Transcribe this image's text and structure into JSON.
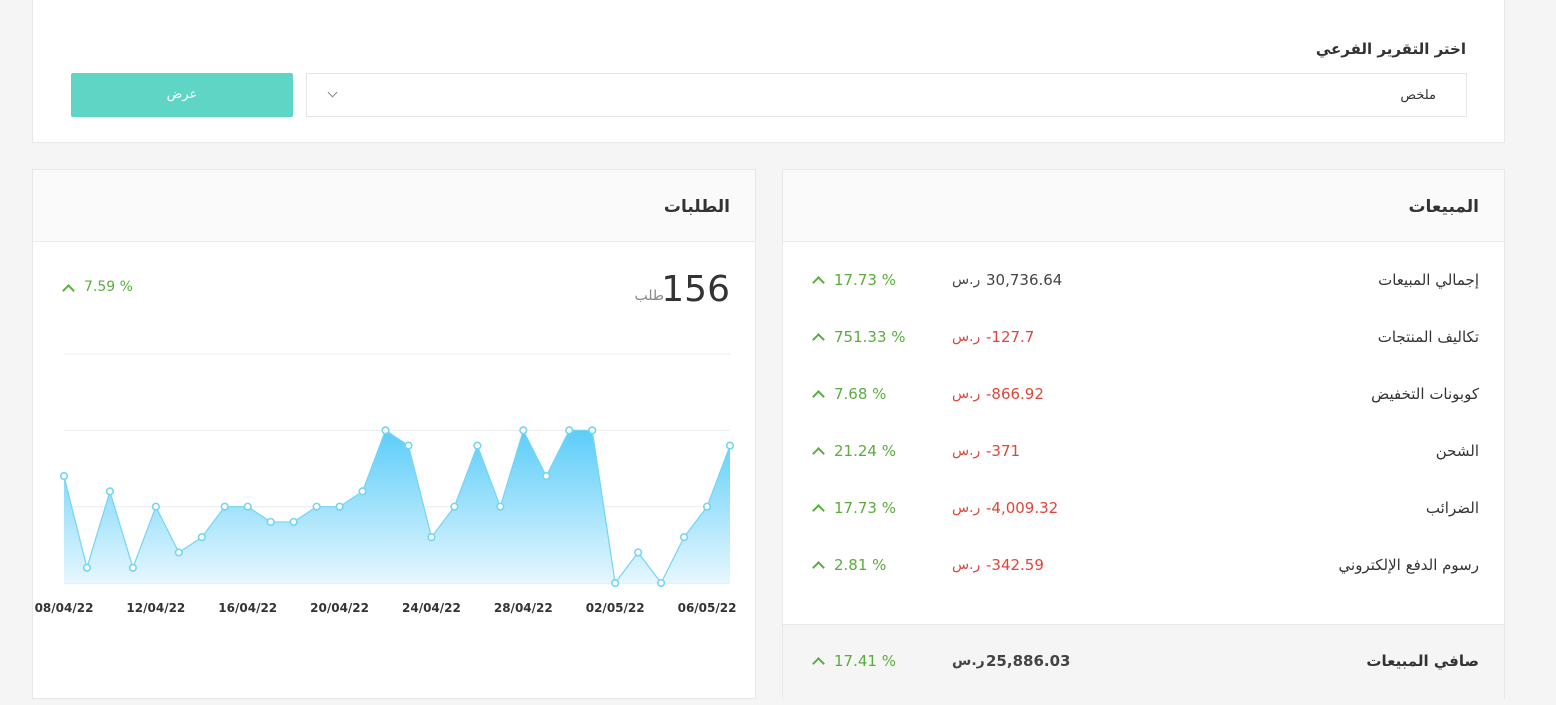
{
  "filter": {
    "label": "اختر التقرير الفرعي",
    "selected": "ملخص",
    "button": "عرض"
  },
  "sales": {
    "title": "المبيعات",
    "currency": "ر.س",
    "rows": [
      {
        "label": "إجمالي المبيعات",
        "value": "30,736.64",
        "change": "17.73 %"
      },
      {
        "label": "تكاليف المنتجات",
        "value": "-127.7",
        "change": "751.33 %"
      },
      {
        "label": "كوبونات التخفيض",
        "value": "-866.92",
        "change": "7.68 %"
      },
      {
        "label": "الشحن",
        "value": "-371",
        "change": "21.24 %"
      },
      {
        "label": "الضرائب",
        "value": "-4,009.32",
        "change": "17.73 %"
      },
      {
        "label": "رسوم الدفع الإلكتروني",
        "value": "-342.59",
        "change": "2.81 %"
      }
    ],
    "total": {
      "label": "صافي المبيعات",
      "value": "25,886.03",
      "change": "17.41 %"
    }
  },
  "orders": {
    "title": "الطلبات",
    "count": "156",
    "unit": "طلب",
    "change": "7.59 %"
  },
  "chart_data": {
    "type": "area",
    "color": "#74d4f7",
    "categories": [
      "08/04/22",
      null,
      null,
      null,
      "12/04/22",
      null,
      null,
      null,
      "16/04/22",
      null,
      null,
      null,
      "20/04/22",
      null,
      null,
      null,
      "24/04/22",
      null,
      null,
      null,
      "28/04/22",
      null,
      null,
      null,
      "02/05/22",
      null,
      null,
      null,
      "06/05/22",
      null
    ],
    "values": [
      7,
      1,
      6,
      1,
      5,
      2,
      3,
      5,
      5,
      4,
      4,
      5,
      5,
      6,
      10,
      9,
      3,
      5,
      9,
      5,
      10,
      7,
      10,
      10,
      0,
      2,
      0,
      3,
      5,
      9
    ],
    "ylim": [
      0,
      15
    ],
    "yticks": [
      0,
      5,
      10,
      15
    ],
    "grid": true
  }
}
